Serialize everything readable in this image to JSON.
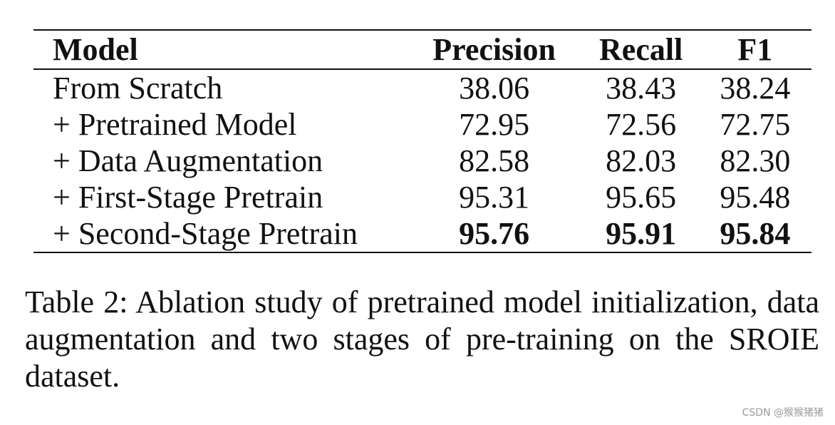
{
  "table": {
    "headers": {
      "model": "Model",
      "precision": "Precision",
      "recall": "Recall",
      "f1": "F1"
    },
    "rows": [
      {
        "model": "From Scratch",
        "precision": "38.06",
        "recall": "38.43",
        "f1": "38.24",
        "bold": false
      },
      {
        "model": "+ Pretrained Model",
        "precision": "72.95",
        "recall": "72.56",
        "f1": "72.75",
        "bold": false
      },
      {
        "model": "+ Data Augmentation",
        "precision": "82.58",
        "recall": "82.03",
        "f1": "82.30",
        "bold": false
      },
      {
        "model": "+ First-Stage Pretrain",
        "precision": "95.31",
        "recall": "95.65",
        "f1": "95.48",
        "bold": false
      },
      {
        "model": "+ Second-Stage Pretrain",
        "precision": "95.76",
        "recall": "95.91",
        "f1": "95.84",
        "bold": true
      }
    ]
  },
  "caption": "Table 2: Ablation study of pretrained model initialization, data augmentation and two stages of pre-training on the SROIE dataset.",
  "watermark": "CSDN @猴猴猪猪"
}
